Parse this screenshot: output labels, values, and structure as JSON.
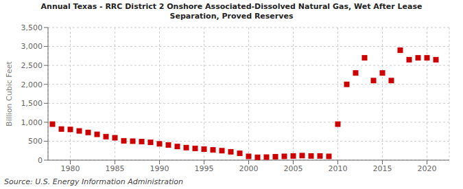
{
  "chart_data": {
    "type": "scatter",
    "title": "Annual Texas - RRC District 2 Onshore Associated-Dissolved Natural Gas, Wet After Lease\nSeparation, Proved Reserves",
    "ylabel": "Billion Cubic Feet",
    "annotations": [
      "Source: U.S. Energy Information Administration"
    ],
    "color": "#cc0000",
    "marker": "square",
    "grid": true,
    "x": [
      1978,
      1979,
      1980,
      1981,
      1982,
      1983,
      1984,
      1985,
      1986,
      1987,
      1988,
      1989,
      1990,
      1991,
      1992,
      1993,
      1994,
      1995,
      1996,
      1997,
      1998,
      1999,
      2000,
      2001,
      2002,
      2003,
      2004,
      2005,
      2006,
      2007,
      2008,
      2009,
      2010,
      2011,
      2012,
      2013,
      2014,
      2015,
      2016,
      2017,
      2018,
      2019,
      2020,
      2021
    ],
    "values": [
      950,
      820,
      810,
      770,
      730,
      680,
      620,
      590,
      510,
      500,
      490,
      470,
      430,
      400,
      360,
      330,
      310,
      290,
      270,
      250,
      220,
      180,
      100,
      75,
      80,
      90,
      100,
      110,
      120,
      110,
      110,
      100,
      950,
      2000,
      2300,
      2700,
      2100,
      2300,
      2100,
      2900,
      2650,
      2700,
      2700,
      2650
    ],
    "xlim": [
      1977.5,
      2022.5
    ],
    "xticks": [
      1980,
      1985,
      1990,
      1995,
      2000,
      2005,
      2010,
      2015,
      2020
    ],
    "ylim": [
      0,
      3500
    ],
    "yticks": [
      0,
      500,
      {
        "value": 1000,
        "label": "1,000"
      },
      {
        "value": 1500,
        "label": "1,500"
      },
      {
        "value": 2000,
        "label": "2,000"
      },
      {
        "value": 2500,
        "label": "2,500"
      },
      {
        "value": 3000,
        "label": "3,000"
      },
      {
        "value": 3500,
        "label": "3,500"
      }
    ]
  }
}
